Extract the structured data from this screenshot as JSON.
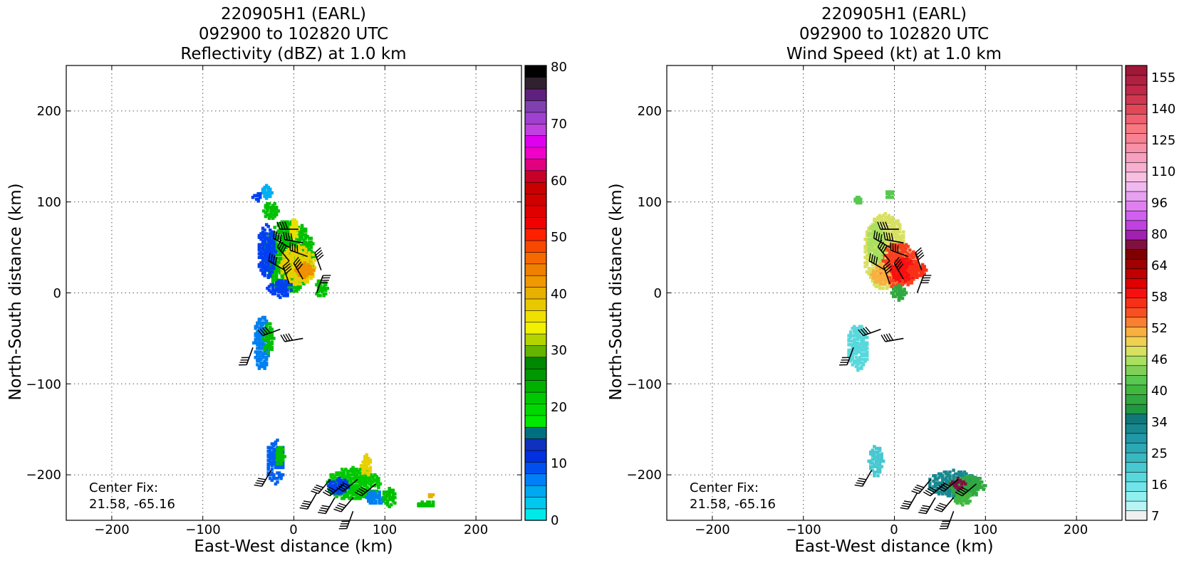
{
  "figure": {
    "panels": [
      {
        "title_lines": [
          "220905H1 (EARL)",
          "092900 to 102820 UTC",
          "Reflectivity (dBZ) at 1.0 km"
        ],
        "xlabel": "East-West distance (km)",
        "ylabel": "North-South distance (km)",
        "x_ticks": [
          "−200",
          "−100",
          "0",
          "100",
          "200"
        ],
        "y_ticks": [
          "200",
          "100",
          "0",
          "−100",
          "−200"
        ],
        "center_fix_label": "Center Fix:",
        "center_fix_value": "21.58, -65.16",
        "colorbar_labels": [
          "80",
          "70",
          "60",
          "50",
          "40",
          "30",
          "20",
          "10",
          "0"
        ]
      },
      {
        "title_lines": [
          "220905H1 (EARL)",
          "092900 to 102820 UTC",
          "Wind Speed (kt) at 1.0 km"
        ],
        "xlabel": "East-West distance (km)",
        "ylabel": "North-South distance (km)",
        "x_ticks": [
          "−200",
          "−100",
          "0",
          "100",
          "200"
        ],
        "y_ticks": [
          "200",
          "100",
          "0",
          "−100",
          "−200"
        ],
        "center_fix_label": "Center Fix:",
        "center_fix_value": "21.58, -65.16",
        "colorbar_labels": [
          "155",
          "140",
          "125",
          "110",
          "96",
          "80",
          "64",
          "58",
          "52",
          "46",
          "40",
          "34",
          "25",
          "16",
          "7"
        ]
      }
    ]
  },
  "chart_data": [
    {
      "type": "heatmap",
      "title": "220905H1 (EARL) 092900 to 102820 UTC Reflectivity (dBZ) at 1.0 km",
      "xlabel": "East-West distance (km)",
      "ylabel": "North-South distance (km)",
      "xlim": [
        -250,
        250
      ],
      "ylim": [
        -250,
        250
      ],
      "grid": true,
      "colorbar": {
        "min": 0,
        "max": 80,
        "colors": [
          "#00e8e8",
          "#00c8ee",
          "#00a8f0",
          "#0080f8",
          "#0050f0",
          "#0030e0",
          "#1030c0",
          "#007080",
          "#00e800",
          "#00d800",
          "#00c800",
          "#00b000",
          "#009800",
          "#008800",
          "#64b400",
          "#b4d400",
          "#f0f000",
          "#f0e000",
          "#e8c800",
          "#e8b000",
          "#f09800",
          "#f08000",
          "#f86800",
          "#f84800",
          "#ff2000",
          "#f00000",
          "#e00000",
          "#d00000",
          "#c80000",
          "#c80028",
          "#e00080",
          "#f000c8",
          "#e000f0",
          "#c040e0",
          "#a040d0",
          "#8040b0",
          "#602080",
          "#302030",
          "#000000"
        ]
      },
      "regions": [
        {
          "x": -5,
          "y": 40,
          "rx": 28,
          "ry": 40,
          "color": "#00c000"
        },
        {
          "x": 5,
          "y": 30,
          "rx": 20,
          "ry": 22,
          "color": "#e8d000"
        },
        {
          "x": 12,
          "y": 25,
          "rx": 10,
          "ry": 8,
          "color": "#f09000"
        },
        {
          "x": -30,
          "y": 45,
          "rx": 10,
          "ry": 30,
          "color": "#0040f0"
        },
        {
          "x": -15,
          "y": 5,
          "rx": 14,
          "ry": 10,
          "color": "#0040f0"
        },
        {
          "x": -30,
          "y": 110,
          "rx": 6,
          "ry": 8,
          "color": "#00b0f0"
        },
        {
          "x": -40,
          "y": 105,
          "rx": 5,
          "ry": 6,
          "color": "#0040f0"
        },
        {
          "x": -25,
          "y": 90,
          "rx": 8,
          "ry": 10,
          "color": "#00c000"
        },
        {
          "x": 0,
          "y": 70,
          "rx": 5,
          "ry": 12,
          "color": "#e8e000"
        },
        {
          "x": 30,
          "y": 5,
          "rx": 7,
          "ry": 10,
          "color": "#00c000"
        },
        {
          "x": -35,
          "y": -55,
          "rx": 9,
          "ry": 30,
          "color": "#0080f0"
        },
        {
          "x": -28,
          "y": -50,
          "rx": 6,
          "ry": 18,
          "color": "#00c000"
        },
        {
          "x": -20,
          "y": -185,
          "rx": 10,
          "ry": 25,
          "color": "#0060f0"
        },
        {
          "x": -15,
          "y": -180,
          "rx": 5,
          "ry": 12,
          "color": "#00c000"
        },
        {
          "x": 65,
          "y": -210,
          "rx": 30,
          "ry": 18,
          "color": "#00c800"
        },
        {
          "x": 50,
          "y": -212,
          "rx": 12,
          "ry": 10,
          "color": "#0040f0"
        },
        {
          "x": 80,
          "y": -190,
          "rx": 6,
          "ry": 12,
          "color": "#e8d000"
        },
        {
          "x": 90,
          "y": -225,
          "rx": 10,
          "ry": 8,
          "color": "#0080f0"
        },
        {
          "x": 105,
          "y": -225,
          "rx": 8,
          "ry": 10,
          "color": "#00c000"
        },
        {
          "x": 145,
          "y": -232,
          "rx": 10,
          "ry": 4,
          "color": "#00c000"
        },
        {
          "x": 150,
          "y": -222,
          "rx": 3,
          "ry": 4,
          "color": "#e8b000"
        }
      ],
      "wind_barbs": [
        {
          "x": 5,
          "y": 70,
          "dir": 270
        },
        {
          "x": 10,
          "y": 55,
          "dir": 280
        },
        {
          "x": -5,
          "y": 50,
          "dir": 300
        },
        {
          "x": 15,
          "y": 40,
          "dir": 290
        },
        {
          "x": -5,
          "y": 35,
          "dir": 320
        },
        {
          "x": 30,
          "y": 25,
          "dir": 340
        },
        {
          "x": -10,
          "y": 25,
          "dir": 300
        },
        {
          "x": 10,
          "y": 15,
          "dir": 330
        },
        {
          "x": -5,
          "y": 10,
          "dir": 340
        },
        {
          "x": 25,
          "y": 0,
          "dir": 20
        },
        {
          "x": -15,
          "y": -40,
          "dir": 250
        },
        {
          "x": -45,
          "y": -60,
          "dir": 200
        },
        {
          "x": 10,
          "y": -50,
          "dir": 260
        },
        {
          "x": -25,
          "y": -195,
          "dir": 210
        },
        {
          "x": 40,
          "y": -205,
          "dir": 220
        },
        {
          "x": 55,
          "y": -210,
          "dir": 230
        },
        {
          "x": 70,
          "y": -205,
          "dir": 230
        },
        {
          "x": 25,
          "y": -220,
          "dir": 210
        },
        {
          "x": 45,
          "y": -225,
          "dir": 210
        },
        {
          "x": 65,
          "y": -225,
          "dir": 220
        },
        {
          "x": 90,
          "y": -210,
          "dir": 230
        },
        {
          "x": 65,
          "y": -240,
          "dir": 200
        }
      ]
    },
    {
      "type": "heatmap",
      "title": "220905H1 (EARL) 092900 to 102820 UTC Wind Speed (kt) at 1.0 km",
      "xlabel": "East-West distance (km)",
      "ylabel": "North-South distance (km)",
      "xlim": [
        -250,
        250
      ],
      "ylim": [
        -250,
        250
      ],
      "grid": true,
      "colorbar": {
        "min": 7,
        "max": 160,
        "colors": [
          "#f0f0f0",
          "#b8f4f4",
          "#90f0f0",
          "#70e4e8",
          "#58d8dc",
          "#48c8d0",
          "#38b8c0",
          "#2ca8b4",
          "#2098a8",
          "#188890",
          "#107878",
          "#209840",
          "#30a840",
          "#40b840",
          "#58c850",
          "#80d058",
          "#a8e060",
          "#d8e060",
          "#f0d050",
          "#f8b040",
          "#f88030",
          "#f85020",
          "#f83018",
          "#f81010",
          "#e00000",
          "#c00000",
          "#a00000",
          "#800000",
          "#801040",
          "#a020b0",
          "#c040e0",
          "#d060f0",
          "#e080f0",
          "#e8a0f0",
          "#f0b8f0",
          "#f8c0e0",
          "#f8b0d0",
          "#f8a0c0",
          "#f890a8",
          "#f88090",
          "#f87880",
          "#f06070",
          "#e04858",
          "#d03850",
          "#c02848",
          "#b02040",
          "#a01838"
        ]
      },
      "regions": [
        {
          "x": -10,
          "y": 45,
          "rx": 24,
          "ry": 42,
          "color": "#d8e060"
        },
        {
          "x": 5,
          "y": 30,
          "rx": 22,
          "ry": 25,
          "color": "#f84020"
        },
        {
          "x": 10,
          "y": 25,
          "rx": 14,
          "ry": 14,
          "color": "#f81010"
        },
        {
          "x": -20,
          "y": 55,
          "rx": 10,
          "ry": 22,
          "color": "#a8e060"
        },
        {
          "x": -15,
          "y": 20,
          "rx": 10,
          "ry": 12,
          "color": "#f8b040"
        },
        {
          "x": 25,
          "y": 25,
          "rx": 10,
          "ry": 8,
          "color": "#f83018"
        },
        {
          "x": -40,
          "y": 102,
          "rx": 5,
          "ry": 5,
          "color": "#58c850"
        },
        {
          "x": -5,
          "y": 108,
          "rx": 5,
          "ry": 5,
          "color": "#58c850"
        },
        {
          "x": 5,
          "y": 0,
          "rx": 8,
          "ry": 8,
          "color": "#30a840"
        },
        {
          "x": -40,
          "y": -60,
          "rx": 12,
          "ry": 25,
          "color": "#58d8dc"
        },
        {
          "x": -20,
          "y": -185,
          "rx": 8,
          "ry": 18,
          "color": "#48c8d0"
        },
        {
          "x": 65,
          "y": -210,
          "rx": 28,
          "ry": 15,
          "color": "#188890"
        },
        {
          "x": 80,
          "y": -212,
          "rx": 20,
          "ry": 12,
          "color": "#30a840"
        },
        {
          "x": 75,
          "y": -225,
          "rx": 10,
          "ry": 8,
          "color": "#40b840"
        },
        {
          "x": 70,
          "y": -210,
          "rx": 8,
          "ry": 6,
          "color": "#801040"
        }
      ],
      "wind_barbs": [
        {
          "x": 5,
          "y": 70,
          "dir": 270
        },
        {
          "x": 10,
          "y": 55,
          "dir": 280
        },
        {
          "x": -5,
          "y": 50,
          "dir": 300
        },
        {
          "x": 15,
          "y": 40,
          "dir": 290
        },
        {
          "x": -5,
          "y": 35,
          "dir": 320
        },
        {
          "x": 30,
          "y": 25,
          "dir": 340
        },
        {
          "x": -10,
          "y": 25,
          "dir": 300
        },
        {
          "x": 10,
          "y": 15,
          "dir": 330
        },
        {
          "x": -5,
          "y": 10,
          "dir": 340
        },
        {
          "x": 25,
          "y": 0,
          "dir": 20
        },
        {
          "x": -15,
          "y": -40,
          "dir": 250
        },
        {
          "x": -45,
          "y": -60,
          "dir": 200
        },
        {
          "x": 10,
          "y": -50,
          "dir": 260
        },
        {
          "x": -25,
          "y": -195,
          "dir": 210
        },
        {
          "x": 40,
          "y": -205,
          "dir": 220
        },
        {
          "x": 55,
          "y": -210,
          "dir": 230
        },
        {
          "x": 70,
          "y": -205,
          "dir": 230
        },
        {
          "x": 25,
          "y": -220,
          "dir": 210
        },
        {
          "x": 45,
          "y": -225,
          "dir": 210
        },
        {
          "x": 65,
          "y": -225,
          "dir": 220
        },
        {
          "x": 90,
          "y": -210,
          "dir": 230
        },
        {
          "x": 65,
          "y": -240,
          "dir": 200
        }
      ]
    }
  ]
}
